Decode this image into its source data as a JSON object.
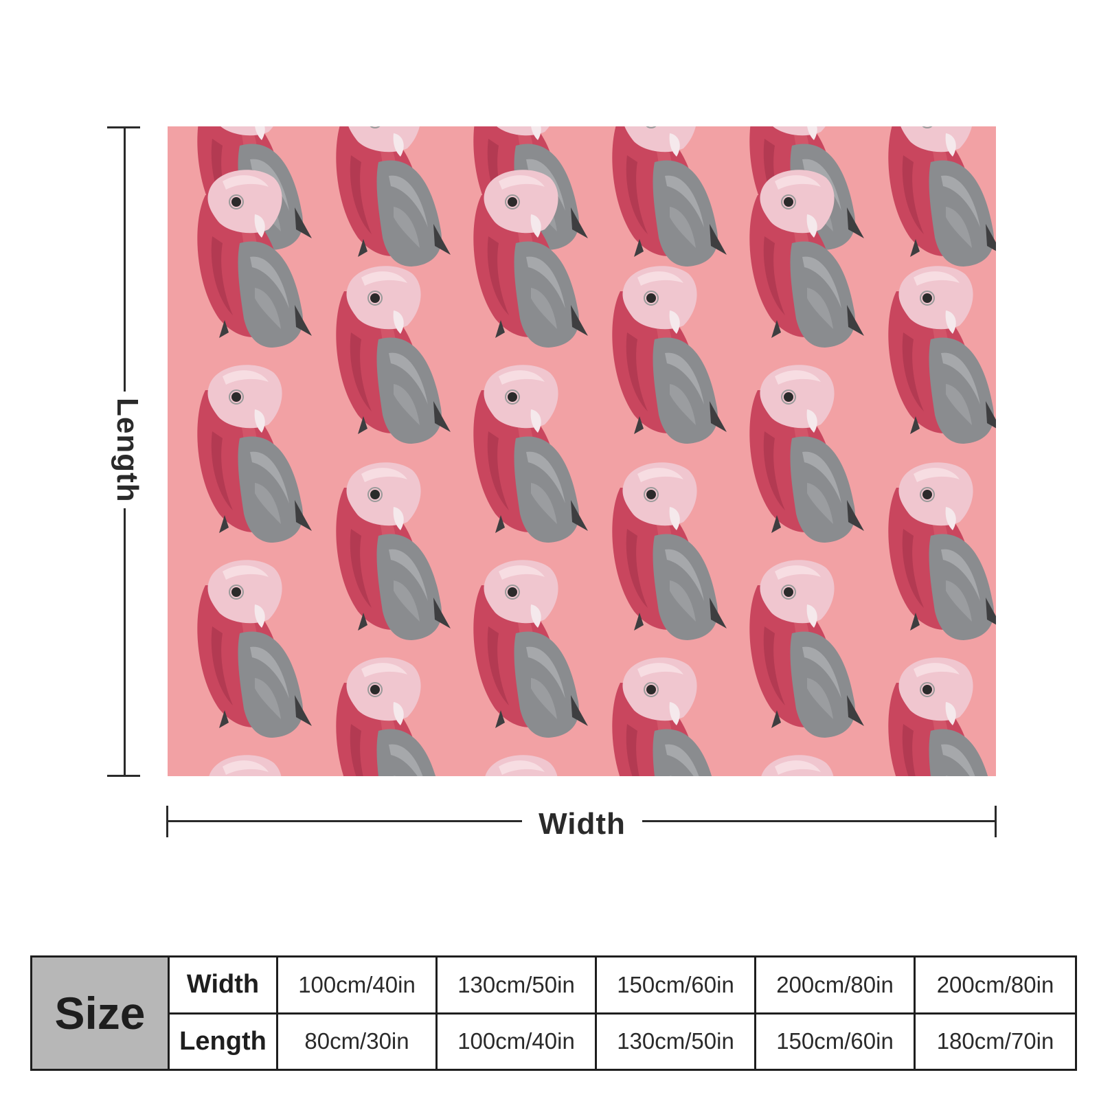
{
  "dimensions": {
    "length_label": "Length",
    "width_label": "Width"
  },
  "blanket": {
    "pattern_icon": "galah-cockatoo-illustration",
    "background_color": "#f2a1a4"
  },
  "size_table": {
    "header": "Size",
    "rows": [
      {
        "label": "Width",
        "values": [
          "100cm/40in",
          "130cm/50in",
          "150cm/60in",
          "200cm/80in",
          "200cm/80in"
        ]
      },
      {
        "label": "Length",
        "values": [
          "80cm/30in",
          "100cm/40in",
          "130cm/50in",
          "150cm/60in",
          "180cm/70in"
        ]
      }
    ]
  }
}
